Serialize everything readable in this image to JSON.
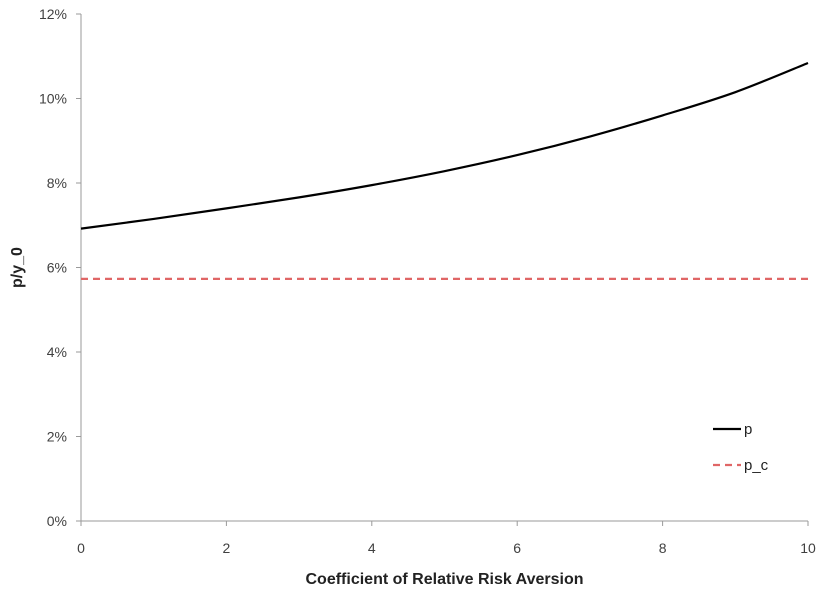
{
  "chart_data": {
    "type": "line",
    "title": "",
    "xlabel": "Coefficient of Relative Risk Aversion",
    "ylabel": "p/y_0",
    "xlim": [
      0,
      10
    ],
    "ylim": [
      0,
      0.12
    ],
    "x_ticks": [
      0,
      2,
      4,
      6,
      8,
      10
    ],
    "x_tick_labels": [
      "0",
      "2",
      "4",
      "6",
      "8",
      "10"
    ],
    "y_ticks": [
      0,
      0.02,
      0.04,
      0.06,
      0.08,
      0.1,
      0.12
    ],
    "y_tick_labels": [
      "0%",
      "2%",
      "4%",
      "6%",
      "8%",
      "10%",
      "12%"
    ],
    "grid": false,
    "legend_position": "bottom-right",
    "series": [
      {
        "name": "p",
        "color": "#000000",
        "style": "solid",
        "x": [
          0,
          1,
          2,
          3,
          4,
          5,
          6,
          7,
          8,
          9,
          10
        ],
        "y": [
          0.0692,
          0.0715,
          0.074,
          0.0766,
          0.0795,
          0.0828,
          0.0866,
          0.091,
          0.096,
          0.1015,
          0.1084
        ]
      },
      {
        "name": "p_c",
        "color": "#e06666",
        "style": "dashed",
        "x": [
          0,
          10
        ],
        "y": [
          0.0573,
          0.0573
        ]
      }
    ]
  }
}
